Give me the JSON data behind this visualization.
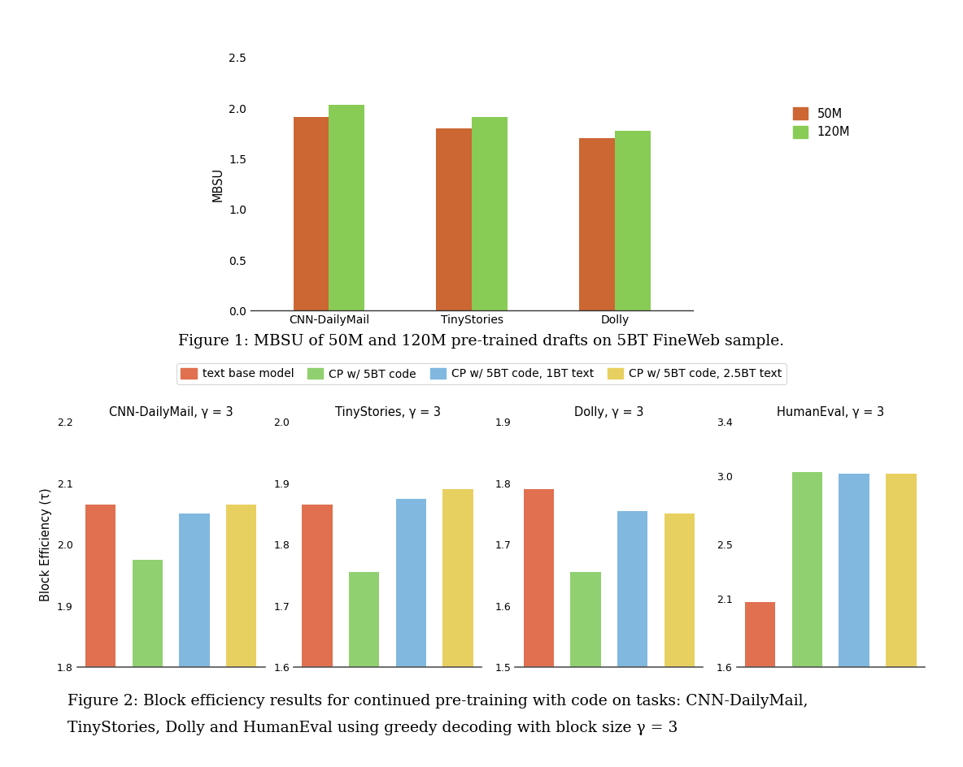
{
  "fig1": {
    "categories": [
      "CNN-DailyMail",
      "TinyStories",
      "Dolly"
    ],
    "values_50M": [
      1.91,
      1.8,
      1.7
    ],
    "values_120M": [
      2.03,
      1.91,
      1.78
    ],
    "color_50M": "#CC6633",
    "color_120M": "#88CC55",
    "ylabel": "MBSU",
    "ylim": [
      0,
      2.5
    ],
    "yticks": [
      0,
      0.5,
      1.0,
      1.5,
      2.0,
      2.5
    ],
    "legend_labels": [
      "50M",
      "120M"
    ],
    "caption1": "Figure 1: MBSU of 50M and 120M pre-trained drafts on 5BT FineWeb sample."
  },
  "fig2": {
    "subtitles": [
      "CNN-DailyMail, γ = 3",
      "TinyStories, γ = 3",
      "Dolly, γ = 3",
      "HumanEval, γ = 3"
    ],
    "ylabel": "Block Efficiency (τ)",
    "colors": [
      "#E07050",
      "#90D070",
      "#80B8E0",
      "#E8D060"
    ],
    "legend_labels": [
      "text base model",
      "CP w/ 5BT code",
      "CP w/ 5BT code, 1BT text",
      "CP w/ 5BT code, 2.5BT text"
    ],
    "data": {
      "CNN-DailyMail": {
        "values": [
          2.065,
          1.975,
          2.05,
          2.065
        ],
        "ylim": [
          1.8,
          2.2
        ],
        "yticks": [
          1.8,
          1.9,
          2.0,
          2.1,
          2.2
        ]
      },
      "TinyStories": {
        "values": [
          1.865,
          1.755,
          1.875,
          1.89
        ],
        "ylim": [
          1.6,
          2.0
        ],
        "yticks": [
          1.6,
          1.7,
          1.8,
          1.9,
          2.0
        ]
      },
      "Dolly": {
        "values": [
          1.79,
          1.655,
          1.755,
          1.75
        ],
        "ylim": [
          1.5,
          1.9
        ],
        "yticks": [
          1.5,
          1.6,
          1.7,
          1.8,
          1.9
        ]
      },
      "HumanEval": {
        "values": [
          2.08,
          3.03,
          3.02,
          3.02
        ],
        "ylim": [
          1.6,
          3.4
        ],
        "yticks": [
          1.6,
          2.1,
          2.5,
          3.0,
          3.4
        ]
      }
    },
    "subplot_order": [
      "CNN-DailyMail",
      "TinyStories",
      "Dolly",
      "HumanEval"
    ],
    "caption2_line1": "Figure 2: Block efficiency results for continued pre-training with code on tasks: CNN-DailyMail,",
    "caption2_line2": "TinyStories, Dolly and HumanEval using greedy decoding with block size γ = 3"
  },
  "background_color": "#ffffff"
}
